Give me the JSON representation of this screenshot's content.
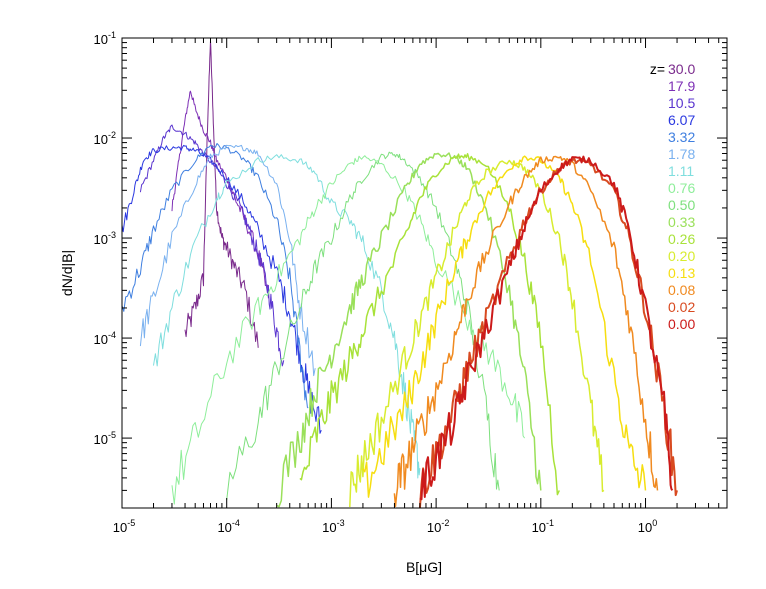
{
  "chart_data": {
    "type": "line",
    "title": "",
    "xlabel": "B[μG]",
    "ylabel": "dN/d|B|",
    "xscale": "log",
    "yscale": "log",
    "xlim": [
      1e-05,
      6
    ],
    "ylim": [
      2e-06,
      0.1
    ],
    "grid": false,
    "legend_placement": "top-right",
    "legend_prefix": "z=",
    "x_ticks": [
      {
        "base": "10",
        "exp": "-5",
        "value": 1e-05
      },
      {
        "base": "10",
        "exp": "-4",
        "value": 0.0001
      },
      {
        "base": "10",
        "exp": "-3",
        "value": 0.001
      },
      {
        "base": "10",
        "exp": "-2",
        "value": 0.01
      },
      {
        "base": "10",
        "exp": "-1",
        "value": 0.1
      },
      {
        "base": "10",
        "exp": "0",
        "value": 1
      }
    ],
    "y_ticks": [
      {
        "base": "10",
        "exp": "-5",
        "value": 1e-05
      },
      {
        "base": "10",
        "exp": "-4",
        "value": 0.0001
      },
      {
        "base": "10",
        "exp": "-3",
        "value": 0.001
      },
      {
        "base": "10",
        "exp": "-2",
        "value": 0.01
      },
      {
        "base": "10",
        "exp": "-1",
        "value": 0.1
      }
    ],
    "series": [
      {
        "name": "30.0",
        "color": "#7a2a8c",
        "width": 1,
        "x": [
          4e-05,
          5e-05,
          6e-05,
          6.5e-05,
          7e-05,
          7.5e-05,
          8e-05,
          9e-05,
          0.0001,
          0.00012,
          0.00015,
          0.0002
        ],
        "y": [
          0.00011,
          0.0002,
          0.0004,
          0.01,
          0.095,
          0.012,
          0.002,
          0.001,
          0.0008,
          0.0005,
          0.0003,
          8e-05
        ]
      },
      {
        "name": "17.9",
        "color": "#7d2fb5",
        "width": 1,
        "x": [
          3e-05,
          3.5e-05,
          4e-05,
          4.5e-05,
          5e-05,
          6e-05,
          7e-05,
          8e-05,
          0.0001,
          0.00012,
          0.00015,
          0.0002,
          0.00025
        ],
        "y": [
          0.002,
          0.006,
          0.015,
          0.03,
          0.02,
          0.012,
          0.009,
          0.006,
          0.004,
          0.0025,
          0.0015,
          0.0007,
          0.00025
        ]
      },
      {
        "name": "10.5",
        "color": "#5a35cf",
        "width": 1,
        "x": [
          1.5e-05,
          2e-05,
          2.5e-05,
          3e-05,
          4e-05,
          5e-05,
          6e-05,
          8e-05,
          0.0001,
          0.00013,
          0.00016,
          0.0002,
          0.00025,
          0.0003,
          0.00035
        ],
        "y": [
          0.003,
          0.006,
          0.01,
          0.013,
          0.011,
          0.009,
          0.007,
          0.005,
          0.0035,
          0.0022,
          0.0013,
          0.0007,
          0.0003,
          0.00012,
          6e-05
        ]
      },
      {
        "name": "6.07",
        "color": "#2a38e0",
        "width": 1,
        "x": [
          1e-05,
          1.3e-05,
          1.6e-05,
          2e-05,
          3e-05,
          4e-05,
          5e-05,
          7e-05,
          0.0001,
          0.00015,
          0.0002,
          0.0003,
          0.0004,
          0.0005,
          0.0006,
          0.0008
        ],
        "y": [
          0.0012,
          0.003,
          0.006,
          0.0075,
          0.008,
          0.008,
          0.0075,
          0.006,
          0.004,
          0.0022,
          0.0012,
          0.00045,
          0.00018,
          7e-05,
          3e-05,
          1.2e-05
        ]
      },
      {
        "name": "3.32",
        "color": "#3f7fe0",
        "width": 1,
        "x": [
          1e-05,
          1.5e-05,
          2e-05,
          3e-05,
          5e-05,
          7e-05,
          0.0001,
          0.00015,
          0.0002,
          0.0003,
          0.0004,
          0.0005,
          0.0006
        ],
        "y": [
          0.0002,
          0.0005,
          0.0012,
          0.003,
          0.006,
          0.0085,
          0.008,
          0.006,
          0.004,
          0.0015,
          0.0004,
          7e-05,
          2e-05
        ]
      },
      {
        "name": "1.78",
        "color": "#7ab1ef",
        "width": 1,
        "x": [
          1.5e-05,
          2e-05,
          3e-05,
          5e-05,
          7e-05,
          0.0001,
          0.00015,
          0.0002,
          0.0003,
          0.0004,
          0.0005,
          0.0007
        ],
        "y": [
          0.0001,
          0.00025,
          0.001,
          0.0035,
          0.0065,
          0.008,
          0.008,
          0.007,
          0.0035,
          0.001,
          0.0002,
          5e-05
        ]
      },
      {
        "name": "1.11",
        "color": "#7fdede",
        "width": 1,
        "x": [
          2e-05,
          3e-05,
          5e-05,
          8e-05,
          0.0001,
          0.0002,
          0.0003,
          0.0005,
          0.0007,
          0.001,
          0.0015,
          0.002,
          0.003,
          0.004,
          0.005,
          0.006,
          0.007
        ],
        "y": [
          5e-05,
          0.0002,
          0.0009,
          0.0025,
          0.0035,
          0.006,
          0.0065,
          0.006,
          0.0045,
          0.0022,
          0.0015,
          0.0009,
          0.0003,
          0.0001,
          3e-05,
          1e-05,
          5e-06
        ]
      },
      {
        "name": "0.76",
        "color": "#8eee9a",
        "width": 1,
        "x": [
          3e-05,
          5e-05,
          0.0001,
          0.0002,
          0.0003,
          0.0005,
          0.0007,
          0.001,
          0.0015,
          0.002,
          0.003,
          0.005,
          0.007,
          0.01,
          0.02,
          0.03,
          0.05,
          0.07
        ],
        "y": [
          3e-06,
          1e-05,
          6e-05,
          0.0002,
          0.0004,
          0.001,
          0.002,
          0.0035,
          0.0055,
          0.0065,
          0.0055,
          0.003,
          0.0015,
          0.0006,
          0.00016,
          8e-05,
          3e-05,
          1e-05
        ]
      },
      {
        "name": "0.50",
        "color": "#7ee07e",
        "width": 1,
        "x": [
          0.0001,
          0.0002,
          0.0003,
          0.0005,
          0.0007,
          0.001,
          0.0015,
          0.002,
          0.003,
          0.004,
          0.005,
          0.007,
          0.01,
          0.015,
          0.02,
          0.03,
          0.04
        ],
        "y": [
          3e-06,
          1.5e-05,
          5e-05,
          0.0002,
          0.0005,
          0.001,
          0.0025,
          0.004,
          0.0065,
          0.007,
          0.006,
          0.004,
          0.002,
          0.0006,
          0.0002,
          2e-05,
          3e-06
        ]
      },
      {
        "name": "0.33",
        "color": "#9ae05a",
        "width": 1.5,
        "x": [
          0.0003,
          0.0005,
          0.0007,
          0.001,
          0.0015,
          0.002,
          0.003,
          0.005,
          0.007,
          0.01,
          0.015,
          0.02,
          0.03,
          0.05,
          0.07,
          0.1
        ],
        "y": [
          3e-06,
          1e-05,
          3e-05,
          7e-05,
          0.0002,
          0.0004,
          0.001,
          0.003,
          0.0055,
          0.007,
          0.0065,
          0.005,
          0.002,
          0.0003,
          4e-05,
          3e-06
        ]
      },
      {
        "name": "0.26",
        "color": "#a8e23a",
        "width": 1.5,
        "x": [
          0.0005,
          0.0007,
          0.001,
          0.0015,
          0.002,
          0.003,
          0.005,
          0.007,
          0.01,
          0.015,
          0.02,
          0.03,
          0.05,
          0.07,
          0.1,
          0.15
        ],
        "y": [
          3e-06,
          1e-05,
          2.5e-05,
          6e-05,
          0.00012,
          0.0003,
          0.001,
          0.0025,
          0.0045,
          0.0065,
          0.0065,
          0.0055,
          0.002,
          0.0006,
          0.0001,
          3e-06
        ]
      },
      {
        "name": "0.20",
        "color": "#d8ec30",
        "width": 1.5,
        "x": [
          0.0015,
          0.002,
          0.003,
          0.005,
          0.007,
          0.01,
          0.015,
          0.02,
          0.03,
          0.05,
          0.07,
          0.1,
          0.15,
          0.2,
          0.3,
          0.4
        ],
        "y": [
          3e-06,
          6e-06,
          1.5e-05,
          6e-05,
          0.00015,
          0.0004,
          0.0012,
          0.0025,
          0.0045,
          0.006,
          0.005,
          0.003,
          0.001,
          0.00025,
          2e-05,
          3e-06
        ]
      },
      {
        "name": "0.13",
        "color": "#f6de10",
        "width": 1.5,
        "x": [
          0.002,
          0.003,
          0.005,
          0.007,
          0.01,
          0.015,
          0.02,
          0.03,
          0.05,
          0.07,
          0.1,
          0.15,
          0.2,
          0.3,
          0.5,
          0.7,
          1
        ],
        "y": [
          3e-06,
          7e-06,
          2e-05,
          5e-05,
          0.00015,
          0.0005,
          0.001,
          0.0025,
          0.005,
          0.0065,
          0.006,
          0.004,
          0.0022,
          0.0006,
          4e-05,
          7e-06,
          3e-06
        ]
      },
      {
        "name": "0.08",
        "color": "#f08a20",
        "width": 1.5,
        "x": [
          0.004,
          0.005,
          0.007,
          0.01,
          0.015,
          0.02,
          0.03,
          0.05,
          0.07,
          0.1,
          0.15,
          0.2,
          0.3,
          0.5,
          0.7,
          1,
          1.3
        ],
        "y": [
          3e-06,
          5e-06,
          1.2e-05,
          3e-05,
          0.0001,
          0.00025,
          0.0007,
          0.0022,
          0.004,
          0.006,
          0.0065,
          0.0055,
          0.003,
          0.0008,
          0.00015,
          1.5e-05,
          3e-06
        ]
      },
      {
        "name": "0.02",
        "color": "#d84a20",
        "width": 2,
        "x": [
          0.007,
          0.01,
          0.015,
          0.02,
          0.03,
          0.05,
          0.07,
          0.1,
          0.15,
          0.2,
          0.3,
          0.5,
          0.7,
          1,
          1.5,
          2
        ],
        "y": [
          3e-06,
          7e-06,
          2e-05,
          5e-05,
          0.00015,
          0.0006,
          0.0015,
          0.003,
          0.005,
          0.006,
          0.0055,
          0.003,
          0.001,
          0.0002,
          2e-05,
          3e-06
        ]
      },
      {
        "name": "0.00",
        "color": "#cc1a1a",
        "width": 2,
        "x": [
          0.007,
          0.01,
          0.015,
          0.02,
          0.03,
          0.05,
          0.07,
          0.1,
          0.15,
          0.2,
          0.3,
          0.5,
          0.7,
          1,
          1.5,
          1.8
        ],
        "y": [
          3e-06,
          6e-06,
          1.5e-05,
          4e-05,
          0.00012,
          0.0005,
          0.0013,
          0.003,
          0.005,
          0.0062,
          0.006,
          0.0035,
          0.0012,
          0.0002,
          2e-05,
          3e-06
        ]
      }
    ]
  }
}
